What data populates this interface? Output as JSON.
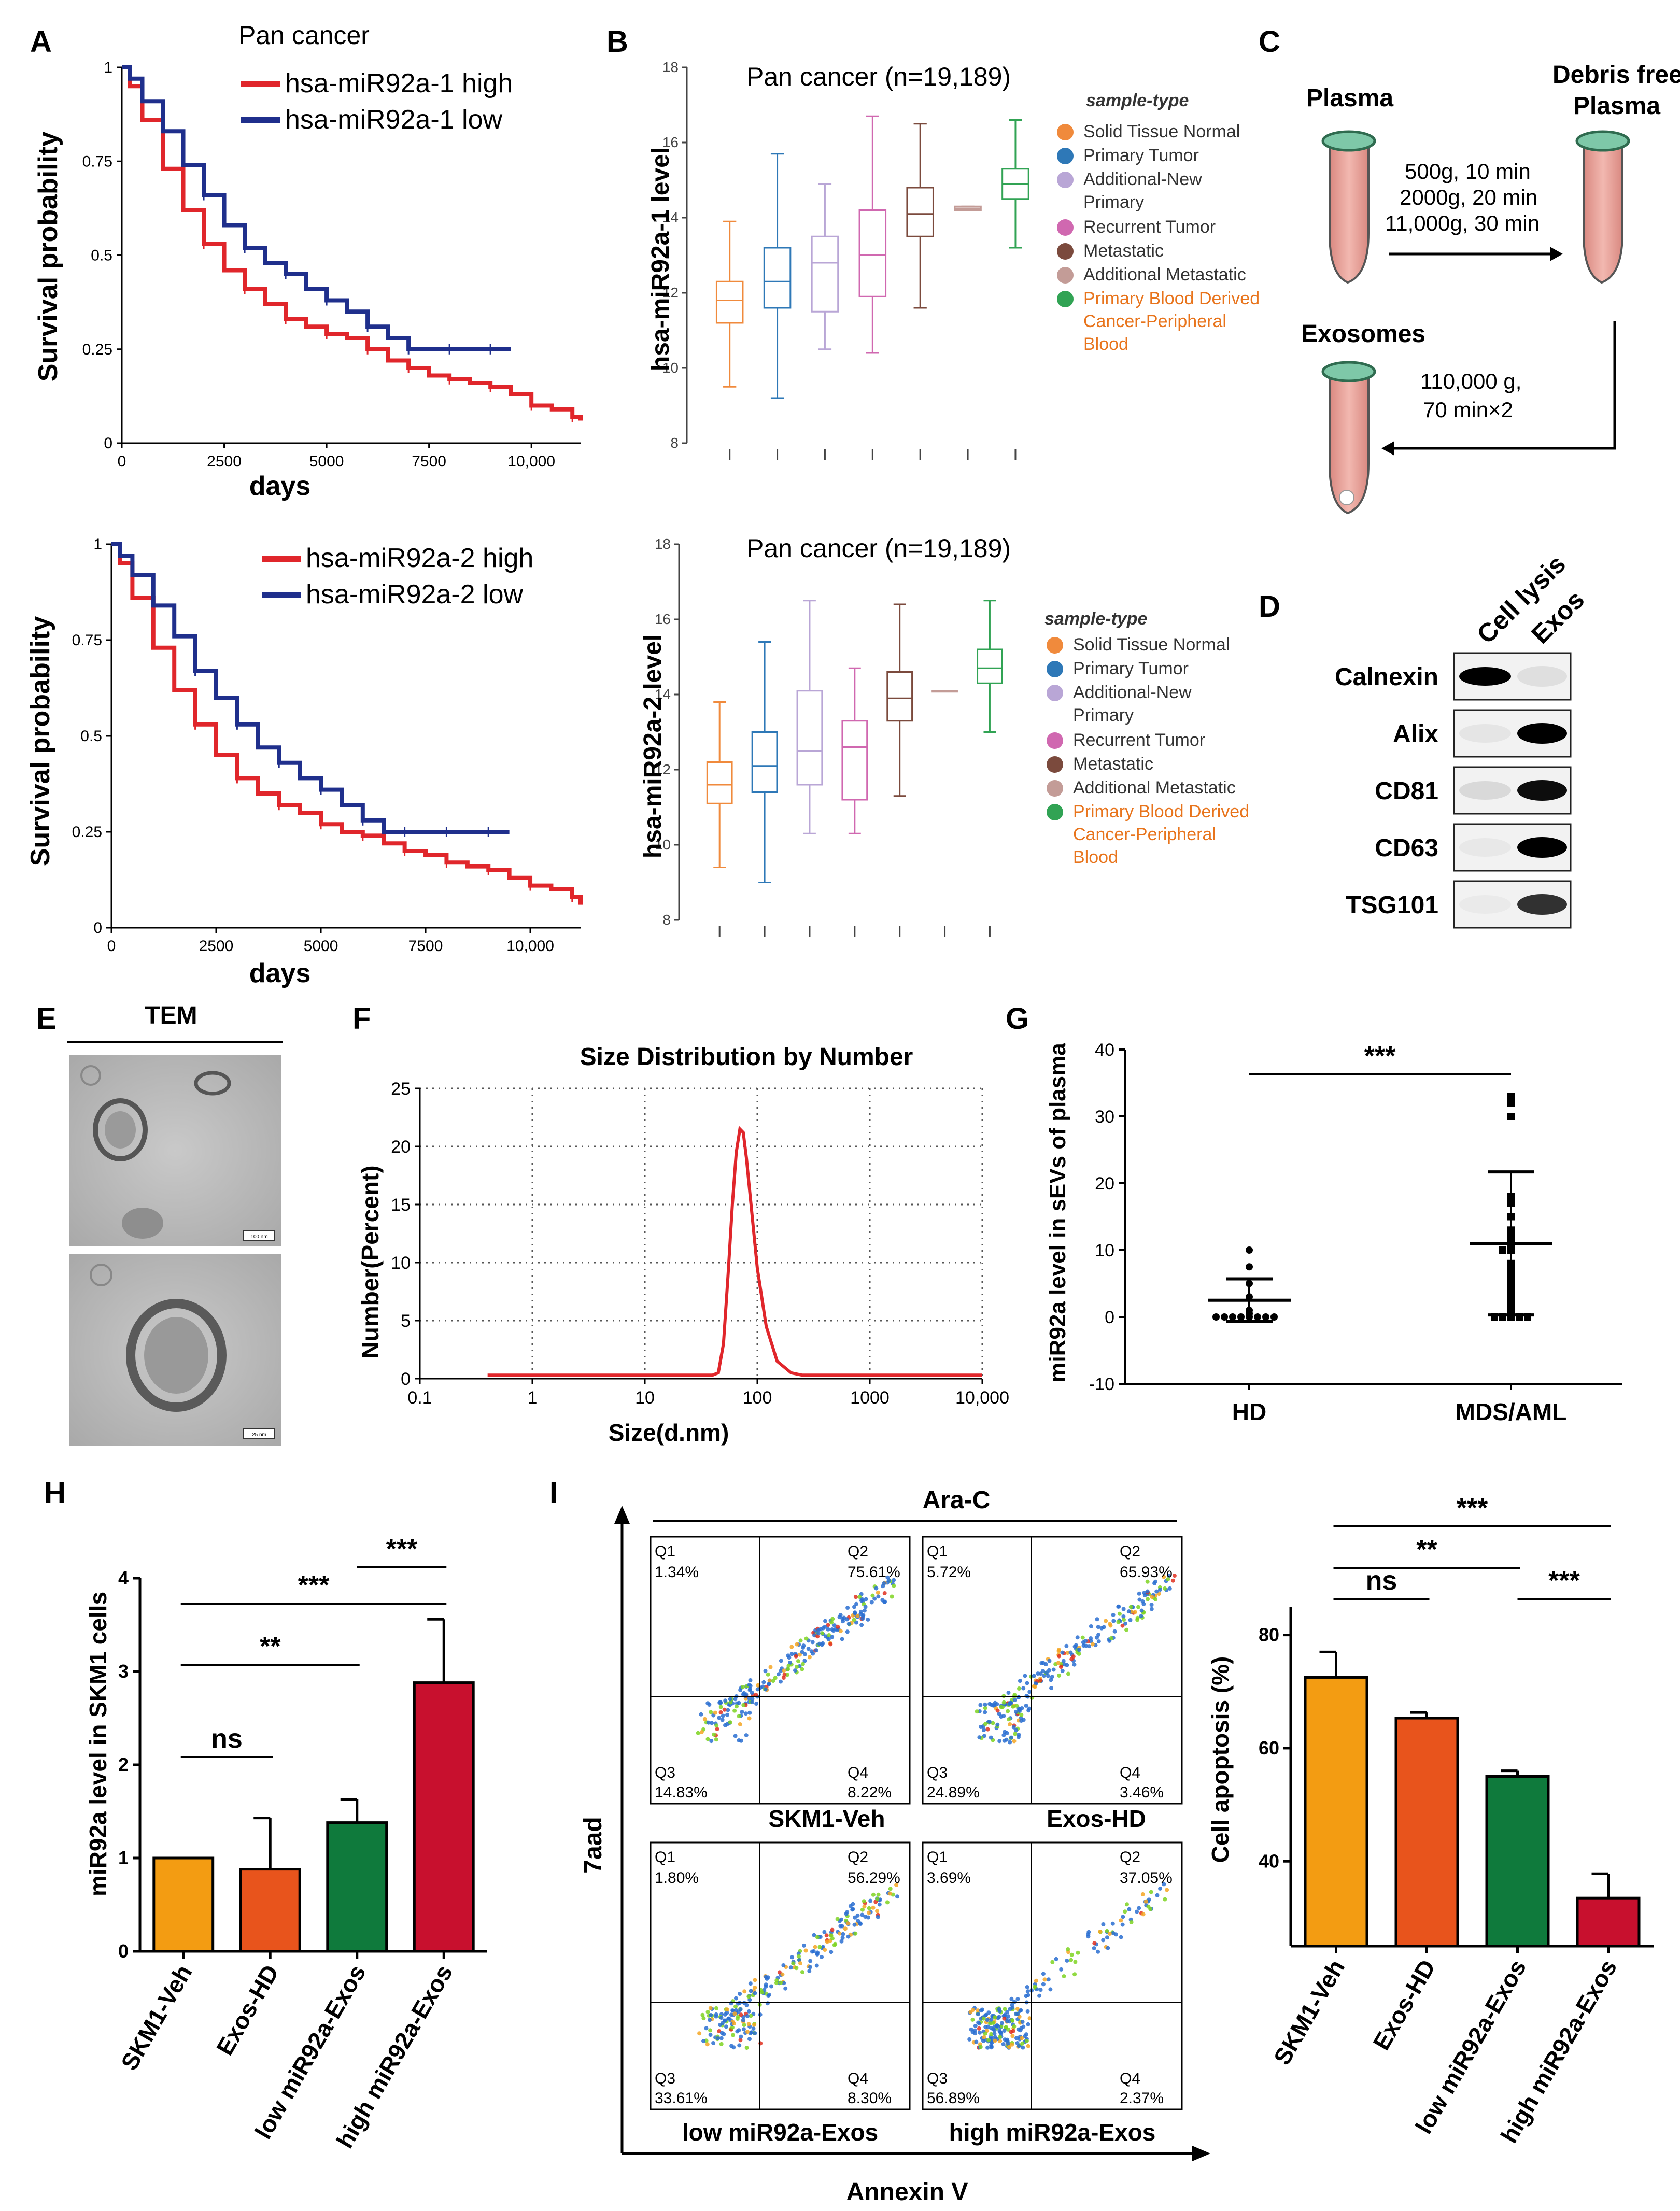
{
  "panel_labels": [
    "A",
    "B",
    "C",
    "D",
    "E",
    "F",
    "G",
    "H",
    "I"
  ],
  "colors": {
    "red": "#e0262b",
    "blue": "#1f2f8c",
    "orange": "#f39c12",
    "orange2": "#e8541c",
    "green": "#0f7a3c",
    "crimson": "#c8102e"
  },
  "chart_data": [
    {
      "id": "A1",
      "type": "line",
      "title": "Pan cancer",
      "xlabel": "days",
      "ylabel": "Survival probability",
      "xticks": [
        "0",
        "2500",
        "5000",
        "7500",
        "10,000"
      ],
      "yticks": [
        "0",
        "0.25",
        "0.5",
        "0.75",
        "1"
      ],
      "xlim": [
        0,
        11200
      ],
      "ylim": [
        0,
        1
      ],
      "series": [
        {
          "name": "hsa-miR92a-1 high",
          "color": "#e0262b",
          "x": [
            0,
            200,
            500,
            1000,
            1500,
            2000,
            2500,
            3000,
            3500,
            4000,
            4500,
            5000,
            5500,
            6000,
            6500,
            7000,
            7500,
            8000,
            8500,
            9000,
            9500,
            10000,
            10500,
            11000,
            11200
          ],
          "y": [
            1,
            0.95,
            0.86,
            0.73,
            0.62,
            0.53,
            0.46,
            0.41,
            0.37,
            0.33,
            0.31,
            0.29,
            0.28,
            0.25,
            0.22,
            0.2,
            0.18,
            0.17,
            0.16,
            0.15,
            0.13,
            0.1,
            0.09,
            0.07,
            0.06
          ]
        },
        {
          "name": "hsa-miR92a-1 low",
          "color": "#1f2f8c",
          "x": [
            0,
            200,
            500,
            1000,
            1500,
            2000,
            2500,
            3000,
            3500,
            4000,
            4500,
            5000,
            5500,
            6000,
            6500,
            7000,
            7500,
            8000,
            8500,
            9000,
            9500
          ],
          "y": [
            1,
            0.97,
            0.91,
            0.83,
            0.74,
            0.66,
            0.58,
            0.52,
            0.48,
            0.45,
            0.41,
            0.38,
            0.35,
            0.31,
            0.28,
            0.25,
            0.25,
            0.25,
            0.25,
            0.25,
            0.25
          ]
        }
      ]
    },
    {
      "id": "A2",
      "type": "line",
      "title": "",
      "xlabel": "days",
      "ylabel": "Survival probability",
      "xticks": [
        "0",
        "2500",
        "5000",
        "7500",
        "10,000"
      ],
      "yticks": [
        "0",
        "0.25",
        "0.5",
        "0.75",
        "1"
      ],
      "xlim": [
        0,
        11200
      ],
      "ylim": [
        0,
        1
      ],
      "series": [
        {
          "name": "hsa-miR92a-2 high",
          "color": "#e0262b",
          "x": [
            0,
            200,
            500,
            1000,
            1500,
            2000,
            2500,
            3000,
            3500,
            4000,
            4500,
            5000,
            5500,
            6000,
            6500,
            7000,
            7500,
            8000,
            8500,
            9000,
            9500,
            10000,
            10500,
            11000,
            11200
          ],
          "y": [
            1,
            0.95,
            0.86,
            0.73,
            0.62,
            0.53,
            0.45,
            0.39,
            0.35,
            0.32,
            0.3,
            0.27,
            0.25,
            0.24,
            0.22,
            0.2,
            0.19,
            0.17,
            0.16,
            0.15,
            0.13,
            0.11,
            0.1,
            0.08,
            0.06
          ]
        },
        {
          "name": "hsa-miR92a-2 low",
          "color": "#1f2f8c",
          "x": [
            0,
            200,
            500,
            1000,
            1500,
            2000,
            2500,
            3000,
            3500,
            4000,
            4500,
            5000,
            5500,
            6000,
            6500,
            7000,
            7500,
            8000,
            8500,
            9000,
            9500
          ],
          "y": [
            1,
            0.97,
            0.92,
            0.84,
            0.76,
            0.67,
            0.6,
            0.53,
            0.47,
            0.43,
            0.39,
            0.36,
            0.32,
            0.28,
            0.25,
            0.25,
            0.25,
            0.25,
            0.25,
            0.25,
            0.25
          ]
        }
      ]
    },
    {
      "id": "B1",
      "type": "box",
      "title": "Pan cancer (n=19,189)",
      "ylabel": "hsa-miR92a-1 level",
      "yticks": [
        "8",
        "10",
        "12",
        "14",
        "16",
        "18"
      ],
      "ylim": [
        8,
        18
      ],
      "legend_title": "sample-type",
      "boxes": [
        {
          "name": "Solid Tissue Normal",
          "color": "#f08a3c",
          "min": 9.5,
          "q1": 11.2,
          "med": 11.8,
          "q3": 12.3,
          "max": 13.9
        },
        {
          "name": "Primary Tumor",
          "color": "#2e78b7",
          "min": 9.2,
          "q1": 11.6,
          "med": 12.3,
          "q3": 13.2,
          "max": 15.7
        },
        {
          "name": "Additional-New Primary",
          "color": "#b9a6d6",
          "min": 10.5,
          "q1": 11.5,
          "med": 12.8,
          "q3": 13.5,
          "max": 14.9
        },
        {
          "name": "Recurrent Tumor",
          "color": "#d068b0",
          "min": 10.4,
          "q1": 11.9,
          "med": 13.0,
          "q3": 14.2,
          "max": 16.7
        },
        {
          "name": "Metastatic",
          "color": "#7b4a3d",
          "min": 11.6,
          "q1": 13.5,
          "med": 14.1,
          "q3": 14.8,
          "max": 16.5
        },
        {
          "name": "Additional Metastatic",
          "color": "#c39c97",
          "min": 14.2,
          "q1": 14.2,
          "med": 14.25,
          "q3": 14.3,
          "max": 14.3
        },
        {
          "name": "Primary Blood Derived Cancer-Peripheral Blood",
          "color": "#31a354",
          "min": 13.2,
          "q1": 14.5,
          "med": 14.9,
          "q3": 15.3,
          "max": 16.6
        }
      ]
    },
    {
      "id": "B2",
      "type": "box",
      "title": "Pan cancer (n=19,189)",
      "ylabel": "hsa-miR92a-2 level",
      "yticks": [
        "8",
        "10",
        "12",
        "14",
        "16",
        "18"
      ],
      "ylim": [
        8,
        18
      ],
      "legend_title": "sample-type",
      "boxes": [
        {
          "name": "Solid Tissue Normal",
          "color": "#f08a3c",
          "min": 9.4,
          "q1": 11.1,
          "med": 11.6,
          "q3": 12.2,
          "max": 13.8
        },
        {
          "name": "Primary Tumor",
          "color": "#2e78b7",
          "min": 9.0,
          "q1": 11.4,
          "med": 12.1,
          "q3": 13.0,
          "max": 15.4
        },
        {
          "name": "Additional-New Primary",
          "color": "#b9a6d6",
          "min": 10.3,
          "q1": 11.6,
          "med": 12.5,
          "q3": 14.1,
          "max": 16.5
        },
        {
          "name": "Recurrent Tumor",
          "color": "#d068b0",
          "min": 10.3,
          "q1": 11.2,
          "med": 12.6,
          "q3": 13.3,
          "max": 14.7
        },
        {
          "name": "Metastatic",
          "color": "#7b4a3d",
          "min": 11.3,
          "q1": 13.3,
          "med": 13.9,
          "q3": 14.6,
          "max": 16.4
        },
        {
          "name": "Additional Metastatic",
          "color": "#c39c97",
          "min": 14.1,
          "q1": 14.1,
          "med": 14.1,
          "q3": 14.1,
          "max": 14.1
        },
        {
          "name": "Primary Blood Derived Cancer-Peripheral Blood",
          "color": "#31a354",
          "min": 13.0,
          "q1": 14.3,
          "med": 14.7,
          "q3": 15.2,
          "max": 16.5
        }
      ]
    },
    {
      "id": "F",
      "type": "line",
      "title": "Size Distribution by Number",
      "xlabel": "Size(d.nm)",
      "ylabel": "Number(Percent)",
      "xscale": "log",
      "xticks": [
        "0.1",
        "1",
        "10",
        "100",
        "1000",
        "10,000"
      ],
      "yticks": [
        "0",
        "5",
        "10",
        "15",
        "20",
        "25"
      ],
      "xlim": [
        0.1,
        10000
      ],
      "ylim": [
        0,
        25
      ],
      "series": [
        {
          "name": "size",
          "color": "#e0262b",
          "x": [
            0.4,
            40,
            45,
            50,
            55,
            60,
            65,
            70,
            75,
            80,
            90,
            100,
            120,
            150,
            200,
            250,
            300,
            1000,
            10000
          ],
          "y": [
            0.3,
            0.3,
            0.5,
            3,
            9,
            15,
            19.5,
            21.5,
            21.2,
            19,
            14,
            9.5,
            4.5,
            1.5,
            0.5,
            0.3,
            0.3,
            0.3,
            0.3
          ]
        }
      ]
    },
    {
      "id": "G",
      "type": "scatter",
      "title": "",
      "ylabel": "miR92a level in sEVs of plasma",
      "categories": [
        "HD",
        "MDS/AML"
      ],
      "yticks": [
        "-10",
        "0",
        "10",
        "20",
        "30",
        "40"
      ],
      "ylim": [
        -10,
        40
      ],
      "significance": "***",
      "groups": [
        {
          "name": "HD",
          "mean": 2.5,
          "sd": 3.2,
          "values": [
            10,
            7.5,
            5,
            3,
            1,
            0.5,
            0,
            0,
            0,
            0,
            0,
            0,
            0,
            0
          ]
        },
        {
          "name": "MDS/AML",
          "mean": 11,
          "sd": 10.7,
          "values": [
            33,
            32,
            30,
            18,
            17,
            15,
            13,
            12,
            11,
            10,
            10,
            8,
            7,
            6,
            5,
            4,
            3,
            2,
            1,
            0.5,
            0,
            0,
            0,
            0,
            0
          ]
        }
      ]
    },
    {
      "id": "H",
      "type": "bar",
      "title": "",
      "ylabel": "miR92a level in SKM1 cells",
      "categories": [
        "SKM1-Veh",
        "Exos-HD",
        "low miR92a-Exos",
        "high miR92a-Exos"
      ],
      "values": [
        1.0,
        0.88,
        1.38,
        2.88
      ],
      "errors": [
        0,
        0.55,
        0.25,
        0.68
      ],
      "colors": [
        "#f39c12",
        "#e8541c",
        "#0f7a3c",
        "#c8102e"
      ],
      "yticks": [
        "0",
        "1",
        "2",
        "3",
        "4"
      ],
      "ylim": [
        0,
        4
      ],
      "significance": [
        {
          "label": "ns",
          "from": 0,
          "to": 1
        },
        {
          "label": "**",
          "from": 0,
          "to": 2
        },
        {
          "label": "***",
          "from": 0,
          "to": 3
        },
        {
          "label": "***",
          "from": 2,
          "to": 3
        }
      ]
    },
    {
      "id": "I2",
      "type": "bar",
      "title": "",
      "ylabel": "Cell apoptosis (%)",
      "categories": [
        "SKM1-Veh",
        "Exos-HD",
        "low miR92a-Exos",
        "high miR92a-Exos"
      ],
      "values": [
        72.5,
        65.3,
        55,
        33.5
      ],
      "errors": [
        4.5,
        1,
        1,
        4.3
      ],
      "colors": [
        "#f39c12",
        "#e8541c",
        "#0f7a3c",
        "#c8102e"
      ],
      "yticks": [
        "40",
        "60",
        "80"
      ],
      "ylim": [
        25,
        85
      ],
      "significance": [
        {
          "label": "ns",
          "from": 0,
          "to": 1
        },
        {
          "label": "**",
          "from": 0,
          "to": 2
        },
        {
          "label": "***",
          "from": 0,
          "to": 3
        },
        {
          "label": "***",
          "from": 2,
          "to": 3
        }
      ]
    }
  ],
  "panel_c": {
    "plasma": "Plasma",
    "debris1": "Debris free",
    "debris2": "Plasma",
    "spin1": "500g, 10 min",
    "spin2": "2000g, 20 min",
    "spin3": "11,000g, 30 min",
    "exosomes": "Exosomes",
    "spin4": "110,000 g,",
    "spin5": "70 min×2"
  },
  "panel_d": {
    "col1": "Cell lysis",
    "col2": "Exos",
    "rows": [
      "Calnexin",
      "Alix",
      "CD81",
      "CD63",
      "TSG101"
    ],
    "band_lysis": [
      1,
      0.05,
      0.1,
      0.04,
      0.03
    ],
    "band_exos": [
      0.08,
      1,
      0.95,
      1,
      0.8
    ]
  },
  "panel_e": {
    "title": "TEM",
    "scale1": "100 nm",
    "scale2": "25 nm"
  },
  "panel_i": {
    "title": "Ara-C",
    "yaxis": "7aad",
    "xaxis": "Annexin V",
    "plots": [
      {
        "label": "",
        "q1": "1.34%",
        "q2": "75.61%",
        "q3": "14.83%",
        "q4": "8.22%"
      },
      {
        "label": "",
        "q1": "5.72%",
        "q2": "65.93%",
        "q3": "24.89%",
        "q4": "3.46%"
      },
      {
        "label": "low miR92a-Exos",
        "q1": "1.80%",
        "q2": "56.29%",
        "q3": "33.61%",
        "q4": "8.30%"
      },
      {
        "label": "high miR92a-Exos",
        "q1": "3.69%",
        "q2": "37.05%",
        "q3": "56.89%",
        "q4": "2.37%"
      }
    ],
    "mid_labels": [
      "SKM1-Veh",
      "Exos-HD"
    ],
    "q_names": [
      "Q1",
      "Q2",
      "Q3",
      "Q4"
    ]
  }
}
